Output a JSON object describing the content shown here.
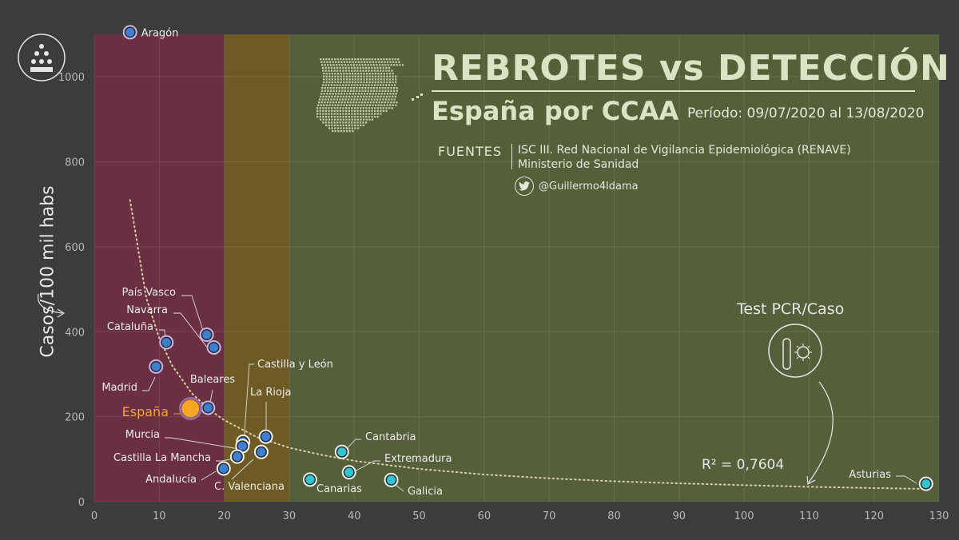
{
  "title": "REBROTES vs DETECCIÓN",
  "subtitle": "España por CCAA",
  "period": "Período: 09/07/2020 al 13/08/2020",
  "sources": {
    "label": "FUENTES",
    "lines": [
      "ISC III. Red Nacional de Vigilancia Epidemiológica (RENAVE)",
      "Ministerio de Sanidad"
    ]
  },
  "twitter": {
    "icon": "twitter-bird-icon",
    "handle": "@Guillermo4ldama"
  },
  "colors": {
    "background": "#3c3c3c",
    "zone_red": "#6b2f42",
    "zone_orange": "#6e5a25",
    "zone_green": "#55603b",
    "point_blue": "#3f7fd0",
    "point_cyan": "#2fc6cf",
    "point_espana": "#f5a623"
  },
  "chart_data": {
    "type": "scatter",
    "title": "REBROTES vs DETECCIÓN",
    "ylabel": "Casos/100 mil habs",
    "xlabel": "",
    "x_annotation": "Test PCR/Caso",
    "xlim": [
      0,
      130
    ],
    "ylim": [
      0,
      1100
    ],
    "x_ticks": [
      0,
      10,
      20,
      30,
      40,
      50,
      60,
      70,
      80,
      90,
      100,
      110,
      120,
      130
    ],
    "y_ticks": [
      0,
      200,
      400,
      600,
      800,
      1000
    ],
    "grid": true,
    "zones": [
      {
        "from": 0,
        "to": 20,
        "color": "#6b2f42"
      },
      {
        "from": 20,
        "to": 30,
        "color": "#6e5a25"
      },
      {
        "from": 30,
        "to": 130,
        "color": "#55603b"
      }
    ],
    "points": [
      {
        "name": "Aragón",
        "x": 5.5,
        "y": 1105,
        "zone": "red"
      },
      {
        "name": "País Vasco",
        "x": 17.3,
        "y": 393,
        "zone": "red"
      },
      {
        "name": "Navarra",
        "x": 18.4,
        "y": 363,
        "zone": "red"
      },
      {
        "name": "Cataluña",
        "x": 11.1,
        "y": 375,
        "zone": "red"
      },
      {
        "name": "Madrid",
        "x": 9.5,
        "y": 318,
        "zone": "red"
      },
      {
        "name": "Baleares",
        "x": 17.5,
        "y": 221,
        "zone": "red"
      },
      {
        "name": "España",
        "x": 14.8,
        "y": 219,
        "zone": "espana"
      },
      {
        "name": "Castilla y León",
        "x": 22.9,
        "y": 141,
        "zone": "orange"
      },
      {
        "name": "Murcia",
        "x": 22.8,
        "y": 131,
        "zone": "orange"
      },
      {
        "name": "La Rioja",
        "x": 26.4,
        "y": 153,
        "zone": "orange"
      },
      {
        "name": "Castilla La Mancha",
        "x": 22.0,
        "y": 106,
        "zone": "orange"
      },
      {
        "name": "C. Valenciana",
        "x": 25.7,
        "y": 117,
        "zone": "orange"
      },
      {
        "name": "Andalucía",
        "x": 19.9,
        "y": 78,
        "zone": "orange"
      },
      {
        "name": "Cantabria",
        "x": 38.1,
        "y": 117,
        "zone": "green"
      },
      {
        "name": "Extremadura",
        "x": 39.2,
        "y": 69,
        "zone": "green"
      },
      {
        "name": "Canarias",
        "x": 33.2,
        "y": 52,
        "zone": "green"
      },
      {
        "name": "Galicia",
        "x": 45.7,
        "y": 51,
        "zone": "green"
      },
      {
        "name": "Asturias",
        "x": 128,
        "y": 42,
        "zone": "green"
      }
    ],
    "trend": {
      "r2_label": "R² = 0,7604",
      "x": [
        5.5,
        8,
        10,
        12,
        15,
        18,
        20,
        25,
        30,
        35,
        40,
        50,
        60,
        70,
        80,
        90,
        100,
        110,
        120,
        128
      ],
      "y": [
        710,
        480,
        385,
        320,
        255,
        213,
        192,
        152,
        127,
        110,
        96,
        77,
        64,
        55,
        48,
        43,
        39,
        35,
        32,
        30
      ]
    }
  }
}
